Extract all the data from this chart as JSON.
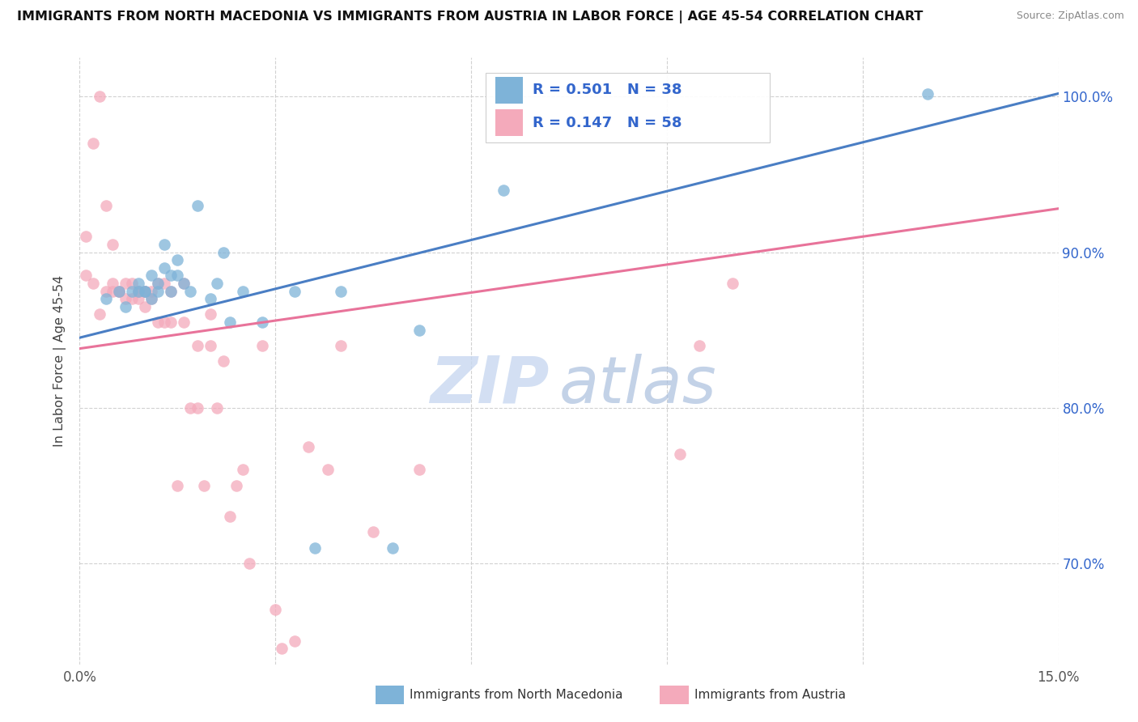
{
  "title": "IMMIGRANTS FROM NORTH MACEDONIA VS IMMIGRANTS FROM AUSTRIA IN LABOR FORCE | AGE 45-54 CORRELATION CHART",
  "source": "Source: ZipAtlas.com",
  "ylabel": "In Labor Force | Age 45-54",
  "xlim": [
    0.0,
    0.15
  ],
  "ylim": [
    0.635,
    1.025
  ],
  "xticks": [
    0.0,
    0.03,
    0.06,
    0.09,
    0.12,
    0.15
  ],
  "xtick_labels": [
    "0.0%",
    "",
    "",
    "",
    "",
    "15.0%"
  ],
  "ytick_labels_right": [
    "70.0%",
    "80.0%",
    "90.0%",
    "100.0%"
  ],
  "yticks_right": [
    0.7,
    0.8,
    0.9,
    1.0
  ],
  "blue_color": "#7EB3D8",
  "pink_color": "#F4AABB",
  "blue_line_color": "#4A7EC4",
  "pink_line_color": "#E8739A",
  "legend_text_color": "#3366CC",
  "blue_line_x0": 0.0,
  "blue_line_y0": 0.845,
  "blue_line_x1": 0.15,
  "blue_line_y1": 1.002,
  "pink_line_x0": 0.0,
  "pink_line_y0": 0.838,
  "pink_line_x1": 0.15,
  "pink_line_y1": 0.928,
  "blue_scatter_x": [
    0.004,
    0.006,
    0.007,
    0.008,
    0.009,
    0.009,
    0.01,
    0.01,
    0.011,
    0.011,
    0.012,
    0.012,
    0.013,
    0.013,
    0.014,
    0.014,
    0.015,
    0.015,
    0.016,
    0.017,
    0.018,
    0.02,
    0.021,
    0.022,
    0.023,
    0.025,
    0.028,
    0.033,
    0.036,
    0.04,
    0.048,
    0.052,
    0.065,
    0.13
  ],
  "blue_scatter_y": [
    0.87,
    0.875,
    0.865,
    0.875,
    0.88,
    0.875,
    0.875,
    0.875,
    0.885,
    0.87,
    0.875,
    0.88,
    0.89,
    0.905,
    0.875,
    0.885,
    0.885,
    0.895,
    0.88,
    0.875,
    0.93,
    0.87,
    0.88,
    0.9,
    0.855,
    0.875,
    0.855,
    0.875,
    0.71,
    0.875,
    0.71,
    0.85,
    0.94,
    1.002
  ],
  "pink_scatter_x": [
    0.001,
    0.001,
    0.002,
    0.002,
    0.003,
    0.003,
    0.004,
    0.004,
    0.005,
    0.005,
    0.005,
    0.006,
    0.006,
    0.007,
    0.007,
    0.008,
    0.008,
    0.009,
    0.009,
    0.009,
    0.01,
    0.01,
    0.01,
    0.011,
    0.011,
    0.012,
    0.012,
    0.013,
    0.013,
    0.014,
    0.014,
    0.015,
    0.016,
    0.016,
    0.017,
    0.018,
    0.018,
    0.019,
    0.02,
    0.02,
    0.021,
    0.022,
    0.023,
    0.024,
    0.025,
    0.026,
    0.028,
    0.03,
    0.031,
    0.033,
    0.035,
    0.038,
    0.04,
    0.045,
    0.052,
    0.092,
    0.095,
    0.1
  ],
  "pink_scatter_y": [
    0.885,
    0.91,
    0.97,
    0.88,
    1.0,
    0.86,
    0.93,
    0.875,
    0.88,
    0.905,
    0.875,
    0.875,
    0.875,
    0.88,
    0.87,
    0.87,
    0.88,
    0.875,
    0.875,
    0.87,
    0.875,
    0.875,
    0.865,
    0.87,
    0.875,
    0.855,
    0.88,
    0.855,
    0.88,
    0.855,
    0.875,
    0.75,
    0.855,
    0.88,
    0.8,
    0.8,
    0.84,
    0.75,
    0.86,
    0.84,
    0.8,
    0.83,
    0.73,
    0.75,
    0.76,
    0.7,
    0.84,
    0.67,
    0.645,
    0.65,
    0.775,
    0.76,
    0.84,
    0.72,
    0.76,
    0.77,
    0.84,
    0.88
  ]
}
